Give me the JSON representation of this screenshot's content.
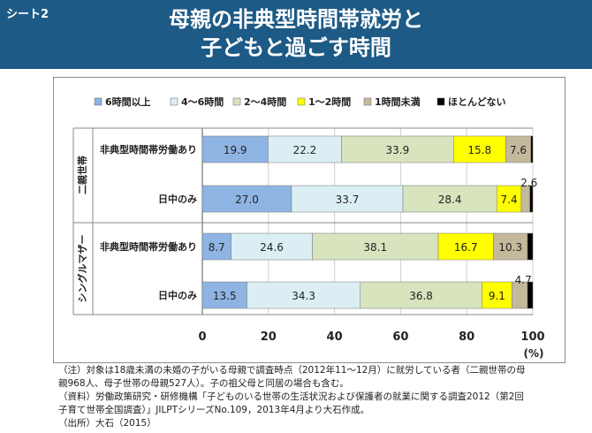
{
  "header": {
    "sheet_label": "シート2",
    "title_line1": "母親の非典型時間帯就労と",
    "title_line2": "子どもと過ごす時間"
  },
  "chart_data": {
    "type": "bar",
    "orientation": "horizontal",
    "stacked": true,
    "legend_position": "top",
    "grid": true,
    "groups": [
      {
        "label": "二親世帯",
        "rows": [
          0,
          1
        ]
      },
      {
        "label": "シングルマザー",
        "rows": [
          2,
          3
        ]
      }
    ],
    "categories": [
      "非典型時間帯労働あり",
      "日中のみ",
      "非典型時間帯労働あり",
      "日中のみ"
    ],
    "series": [
      {
        "name": "6時間以上",
        "color": "#8eb4e3",
        "values": [
          19.9,
          27.0,
          8.7,
          13.5
        ]
      },
      {
        "name": "4〜6時間",
        "color": "#dbeef4",
        "values": [
          22.2,
          33.7,
          24.6,
          34.3
        ]
      },
      {
        "name": "2〜4時間",
        "color": "#d7e4bd",
        "values": [
          33.9,
          28.4,
          38.1,
          36.8
        ]
      },
      {
        "name": "1〜2時間",
        "color": "#ffff00",
        "values": [
          15.8,
          7.4,
          16.7,
          9.1
        ]
      },
      {
        "name": "1時間未満",
        "color": "#c4b99a",
        "values": [
          7.6,
          2.6,
          10.3,
          4.7
        ]
      },
      {
        "name": "ほとんどない",
        "color": "#000000",
        "values": [
          0.6,
          0.9,
          1.6,
          1.6
        ]
      }
    ],
    "data_labels": [
      [
        "19.9",
        "22.2",
        "33.9",
        "15.8",
        "7.6",
        ""
      ],
      [
        "27.0",
        "33.7",
        "28.4",
        "7.4",
        "2.6",
        ""
      ],
      [
        "8.7",
        "24.6",
        "38.1",
        "16.7",
        "10.3",
        ""
      ],
      [
        "13.5",
        "34.3",
        "36.8",
        "9.1",
        "4.7",
        ""
      ]
    ],
    "xlim": [
      0,
      100
    ],
    "xticks": [
      "0",
      "20",
      "40",
      "60",
      "80",
      "100"
    ],
    "xunit": "(%)"
  },
  "notes": [
    "（注）対象は18歳未満の未婚の子がいる母親で調査時点（2012年11〜12月）に就労している者（二親世帯の母",
    "親968人、母子世帯の母親527人）。子の祖父母と同居の場合も含む。",
    "（資料）労働政策研究・研修機構「子どものいる世帯の生活状況および保護者の就業に関する調査2012（第2回",
    "子育て世帯全国調査）」JILPTシリーズNo.109，2013年4月より大石作成。",
    "（出所）大石（2015）"
  ]
}
